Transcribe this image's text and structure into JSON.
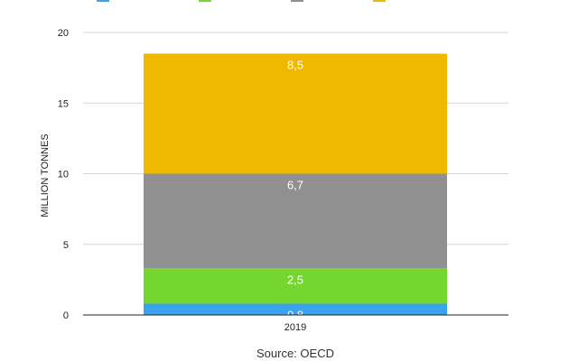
{
  "chart_data": {
    "type": "bar",
    "stacked": true,
    "categories": [
      "2019"
    ],
    "series": [
      {
        "values": [
          0.8
        ],
        "color": "#3aa2ee"
      },
      {
        "values": [
          2.5
        ],
        "color": "#74d62f"
      },
      {
        "values": [
          6.7
        ],
        "color": "#909090"
      },
      {
        "values": [
          8.5
        ],
        "color": "#f0b800"
      }
    ],
    "data_labels": [
      "0,8",
      "2,5",
      "6,7",
      "8,5"
    ],
    "ylabel": "MILLION TONNES",
    "ylim": [
      0,
      20
    ],
    "yticks": [
      0,
      5,
      10,
      15,
      20
    ],
    "grid": true,
    "legend_position": "top",
    "source": "Source: OECD"
  }
}
